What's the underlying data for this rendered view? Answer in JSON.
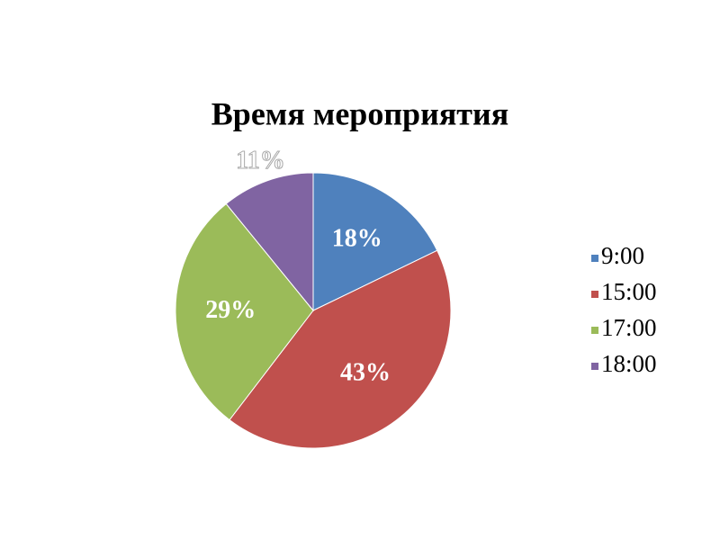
{
  "chart_data": {
    "type": "pie",
    "title": "Время мероприятия",
    "categories": [
      "9:00",
      "15:00",
      "17:00",
      "18:00"
    ],
    "values": [
      18,
      43,
      29,
      11
    ],
    "value_labels": [
      "18%",
      "43%",
      "29%",
      "11%"
    ],
    "colors": [
      "#4f81bd",
      "#c0504d",
      "#9bbb59",
      "#8064a2"
    ],
    "legend": "right"
  }
}
